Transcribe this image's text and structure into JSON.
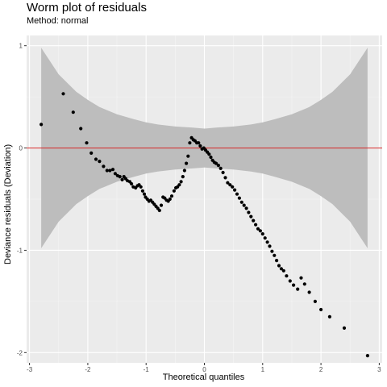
{
  "chart_data": {
    "type": "scatter",
    "title": "Worm plot of residuals",
    "subtitle": "Method: normal",
    "xlabel": "Theoretical quantiles",
    "ylabel": "Deviance residuals (Deviation)",
    "xlim": [
      -3.05,
      3.05
    ],
    "ylim": [
      -2.1,
      1.1
    ],
    "x_ticks": [
      -3,
      -2,
      -1,
      0,
      1,
      2,
      3
    ],
    "y_ticks": [
      -2,
      -1,
      0,
      1
    ],
    "grid": true,
    "reference_line": {
      "y": 0,
      "color": "#d62728"
    },
    "confidence_band": {
      "x": [
        -2.8,
        -2.5,
        -2.2,
        -2.0,
        -1.8,
        -1.5,
        -1.2,
        -1.0,
        -0.8,
        -0.5,
        -0.2,
        0.0,
        0.2,
        0.5,
        0.8,
        1.0,
        1.2,
        1.5,
        1.8,
        2.0,
        2.2,
        2.5,
        2.8
      ],
      "upper": [
        0.98,
        0.72,
        0.55,
        0.47,
        0.4,
        0.33,
        0.28,
        0.25,
        0.23,
        0.21,
        0.2,
        0.19,
        0.2,
        0.21,
        0.23,
        0.25,
        0.28,
        0.33,
        0.4,
        0.47,
        0.55,
        0.72,
        0.98
      ],
      "fill": "#bdbdbd"
    },
    "series": [
      {
        "color": "#000000",
        "points": [
          [
            -2.8,
            0.23
          ],
          [
            -2.42,
            0.53
          ],
          [
            -2.25,
            0.35
          ],
          [
            -2.12,
            0.19
          ],
          [
            -2.02,
            0.05
          ],
          [
            -1.94,
            -0.05
          ],
          [
            -1.86,
            -0.11
          ],
          [
            -1.8,
            -0.13
          ],
          [
            -1.73,
            -0.18
          ],
          [
            -1.67,
            -0.22
          ],
          [
            -1.62,
            -0.22
          ],
          [
            -1.57,
            -0.21
          ],
          [
            -1.53,
            -0.25
          ],
          [
            -1.49,
            -0.27
          ],
          [
            -1.45,
            -0.28
          ],
          [
            -1.41,
            -0.31
          ],
          [
            -1.38,
            -0.28
          ],
          [
            -1.35,
            -0.3
          ],
          [
            -1.32,
            -0.32
          ],
          [
            -1.28,
            -0.33
          ],
          [
            -1.25,
            -0.35
          ],
          [
            -1.22,
            -0.38
          ],
          [
            -1.18,
            -0.39
          ],
          [
            -1.15,
            -0.37
          ],
          [
            -1.12,
            -0.36
          ],
          [
            -1.09,
            -0.38
          ],
          [
            -1.06,
            -0.42
          ],
          [
            -1.03,
            -0.45
          ],
          [
            -1.01,
            -0.48
          ],
          [
            -0.98,
            -0.5
          ],
          [
            -0.95,
            -0.52
          ],
          [
            -0.92,
            -0.51
          ],
          [
            -0.89,
            -0.53
          ],
          [
            -0.86,
            -0.55
          ],
          [
            -0.83,
            -0.57
          ],
          [
            -0.8,
            -0.59
          ],
          [
            -0.77,
            -0.61
          ],
          [
            -0.74,
            -0.56
          ],
          [
            -0.71,
            -0.48
          ],
          [
            -0.68,
            -0.49
          ],
          [
            -0.65,
            -0.51
          ],
          [
            -0.62,
            -0.52
          ],
          [
            -0.59,
            -0.5
          ],
          [
            -0.56,
            -0.47
          ],
          [
            -0.52,
            -0.42
          ],
          [
            -0.49,
            -0.39
          ],
          [
            -0.46,
            -0.38
          ],
          [
            -0.43,
            -0.36
          ],
          [
            -0.4,
            -0.33
          ],
          [
            -0.37,
            -0.28
          ],
          [
            -0.34,
            -0.22
          ],
          [
            -0.31,
            -0.15
          ],
          [
            -0.28,
            -0.08
          ],
          [
            -0.25,
            0.05
          ],
          [
            -0.22,
            0.1
          ],
          [
            -0.19,
            0.08
          ],
          [
            -0.16,
            0.07
          ],
          [
            -0.13,
            0.05
          ],
          [
            -0.1,
            0.05
          ],
          [
            -0.07,
            0.02
          ],
          [
            -0.04,
            -0.01
          ],
          [
            -0.01,
            0.0
          ],
          [
            0.02,
            -0.02
          ],
          [
            0.05,
            -0.04
          ],
          [
            0.08,
            -0.06
          ],
          [
            0.11,
            -0.09
          ],
          [
            0.14,
            -0.12
          ],
          [
            0.17,
            -0.14
          ],
          [
            0.2,
            -0.15
          ],
          [
            0.24,
            -0.17
          ],
          [
            0.28,
            -0.2
          ],
          [
            0.32,
            -0.24
          ],
          [
            0.36,
            -0.29
          ],
          [
            0.4,
            -0.34
          ],
          [
            0.44,
            -0.36
          ],
          [
            0.48,
            -0.38
          ],
          [
            0.52,
            -0.41
          ],
          [
            0.56,
            -0.45
          ],
          [
            0.6,
            -0.49
          ],
          [
            0.64,
            -0.53
          ],
          [
            0.68,
            -0.56
          ],
          [
            0.72,
            -0.59
          ],
          [
            0.76,
            -0.63
          ],
          [
            0.8,
            -0.67
          ],
          [
            0.84,
            -0.71
          ],
          [
            0.88,
            -0.75
          ],
          [
            0.92,
            -0.79
          ],
          [
            0.96,
            -0.81
          ],
          [
            1.0,
            -0.84
          ],
          [
            1.04,
            -0.88
          ],
          [
            1.08,
            -0.92
          ],
          [
            1.12,
            -0.96
          ],
          [
            1.16,
            -1.01
          ],
          [
            1.2,
            -1.05
          ],
          [
            1.24,
            -1.1
          ],
          [
            1.28,
            -1.15
          ],
          [
            1.32,
            -1.18
          ],
          [
            1.36,
            -1.2
          ],
          [
            1.41,
            -1.25
          ],
          [
            1.47,
            -1.3
          ],
          [
            1.53,
            -1.34
          ],
          [
            1.6,
            -1.38
          ],
          [
            1.66,
            -1.27
          ],
          [
            1.72,
            -1.33
          ],
          [
            1.8,
            -1.41
          ],
          [
            1.9,
            -1.5
          ],
          [
            2.0,
            -1.58
          ],
          [
            2.15,
            -1.65
          ],
          [
            2.4,
            -1.76
          ],
          [
            2.8,
            -2.03
          ]
        ]
      }
    ]
  }
}
